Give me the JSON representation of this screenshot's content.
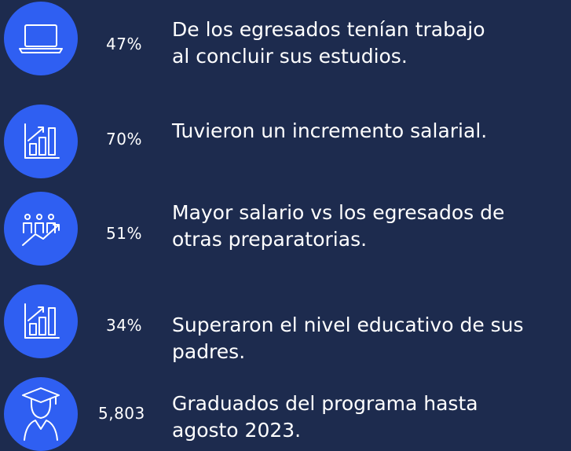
{
  "items": [
    {
      "value": "47%",
      "description": [
        "De los egresados tenían trabajo",
        "al concluir sus estudios."
      ]
    },
    {
      "value": "70%",
      "description": [
        "Tuvieron un incremento salarial."
      ]
    },
    {
      "value": "51%",
      "description": [
        "Mayor salario vs los egresados de",
        "otras preparatorias."
      ]
    },
    {
      "value": "34%",
      "description": [
        "Superaron el nivel educativo de sus",
        "padres."
      ]
    },
    {
      "value": "5,803",
      "description": [
        "Graduados del programa hasta",
        "agosto 2023."
      ]
    }
  ]
}
